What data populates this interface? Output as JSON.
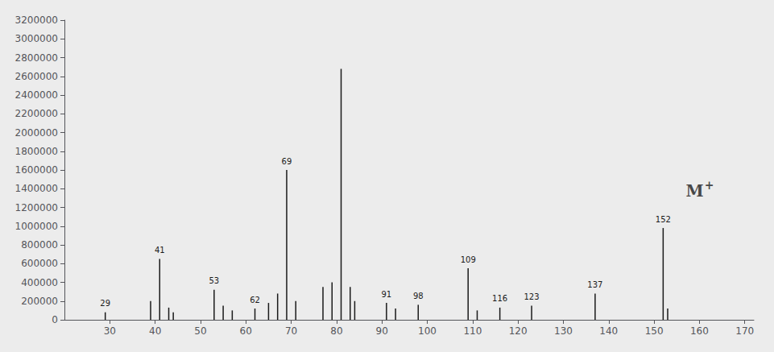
{
  "chart_data": {
    "type": "bar",
    "x": [
      29,
      39,
      41,
      43,
      44,
      53,
      55,
      57,
      62,
      65,
      67,
      69,
      71,
      77,
      79,
      81,
      83,
      84,
      91,
      93,
      98,
      109,
      111,
      116,
      123,
      137,
      152,
      153
    ],
    "values": [
      80000,
      200000,
      650000,
      130000,
      80000,
      320000,
      150000,
      100000,
      120000,
      180000,
      280000,
      1600000,
      200000,
      350000,
      400000,
      2680000,
      350000,
      200000,
      180000,
      120000,
      160000,
      550000,
      100000,
      130000,
      150000,
      280000,
      980000,
      120000
    ],
    "point_labels": [
      "29",
      null,
      "41",
      null,
      null,
      "53",
      null,
      null,
      "62",
      null,
      null,
      "69",
      null,
      null,
      null,
      null,
      null,
      null,
      "91",
      null,
      "98",
      "109",
      null,
      "116",
      "123",
      "137",
      "152",
      null
    ],
    "color": "#1a1a1a",
    "xlim": [
      20,
      172
    ],
    "ylim": [
      0,
      3200000
    ],
    "xticks": [
      30,
      40,
      50,
      60,
      70,
      80,
      90,
      100,
      110,
      120,
      130,
      140,
      150,
      160,
      170
    ],
    "yticks": [
      0,
      200000,
      400000,
      600000,
      800000,
      1000000,
      1200000,
      1400000,
      1600000,
      1800000,
      2000000,
      2200000,
      2400000,
      2600000,
      2800000,
      3000000,
      3200000
    ],
    "grid": false,
    "annotations": [
      {
        "text": "M",
        "superscript": "+",
        "x": 157,
        "y": 1380000
      }
    ]
  }
}
